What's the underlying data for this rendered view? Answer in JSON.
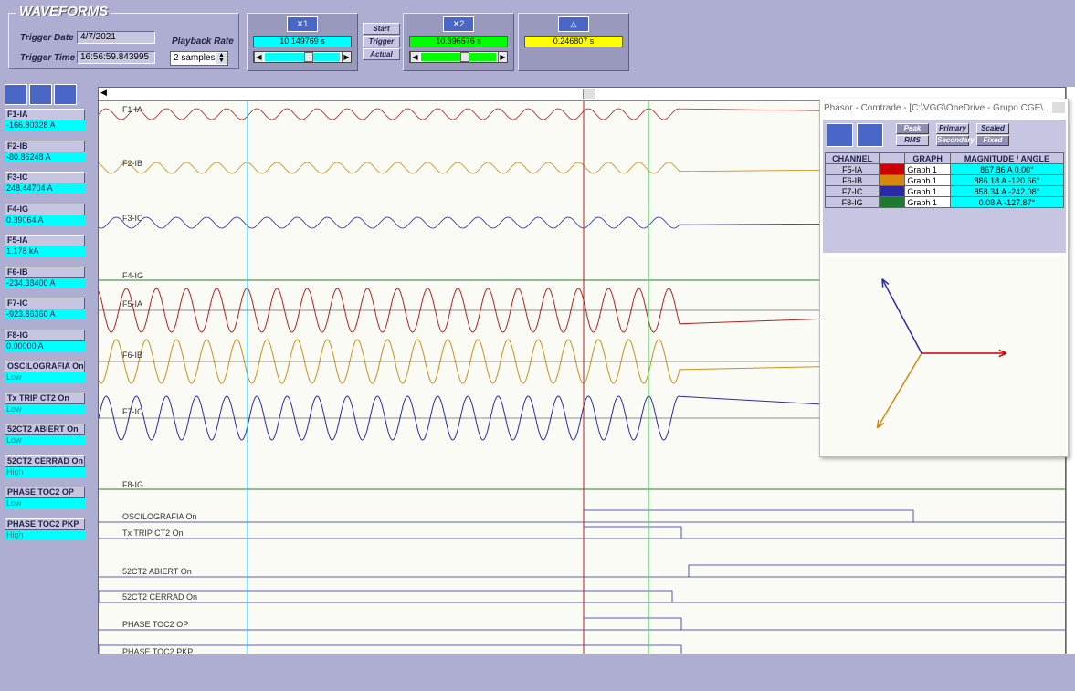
{
  "header": {
    "title": "WAVEFORMS",
    "trigger_date_label": "Trigger Date",
    "trigger_date": "4/7/2021",
    "trigger_time_label": "Trigger Time",
    "trigger_time": "16:56:59.843995",
    "playback_rate_label": "Playback Rate",
    "playback_rate": "2 samples",
    "cursor1": {
      "value": "10.149769 s",
      "color": "#00ffff",
      "icon": "cursor-1-icon"
    },
    "cursor2": {
      "value": "10.396576 s",
      "color": "#00ff00",
      "icon": "cursor-2-icon"
    },
    "delta": {
      "value": "0.246807 s",
      "color": "#ffff00",
      "icon": "delta-icon"
    },
    "buttons": {
      "start": "Start",
      "trigger": "Trigger",
      "actual": "Actual"
    }
  },
  "channels": [
    {
      "name": "F1-IA",
      "value": "-166.80328 A",
      "type": "analog"
    },
    {
      "name": "F2-IB",
      "value": "-80.86248 A",
      "type": "analog"
    },
    {
      "name": "F3-IC",
      "value": "248.44704 A",
      "type": "analog"
    },
    {
      "name": "F4-IG",
      "value": "0.39064 A",
      "type": "analog"
    },
    {
      "name": "F5-IA",
      "value": "1.178 kA",
      "type": "analog"
    },
    {
      "name": "F6-IB",
      "value": "-234.38400 A",
      "type": "analog"
    },
    {
      "name": "F7-IC",
      "value": "-923.86360 A",
      "type": "analog"
    },
    {
      "name": "F8-IG",
      "value": "0.00000 A",
      "type": "analog"
    },
    {
      "name": "OSCILOGRAFIA On",
      "value": "Low",
      "type": "digital"
    },
    {
      "name": "Tx TRIP CT2  On",
      "value": "Low",
      "type": "digital"
    },
    {
      "name": "52CT2 ABIERT On",
      "value": "Low",
      "type": "digital"
    },
    {
      "name": "52CT2 CERRAD On",
      "value": "High",
      "type": "digital"
    },
    {
      "name": "PHASE TOC2 OP",
      "value": "Low",
      "type": "digital"
    },
    {
      "name": "PHASE TOC2 PKP",
      "value": "High",
      "type": "digital"
    }
  ],
  "traces": {
    "analog": [
      {
        "label": "F1-IA",
        "color": "#b22222",
        "amplitude": "small",
        "ends_at": "cursor-after"
      },
      {
        "label": "F2-IB",
        "color": "#c8901e",
        "amplitude": "small",
        "ends_at": "cursor-after"
      },
      {
        "label": "F3-IC",
        "color": "#2a2aa8",
        "amplitude": "small",
        "ends_at": "cursor-after"
      },
      {
        "label": "F4-IG",
        "color": "#2e7d32",
        "amplitude": "none"
      },
      {
        "label": "F5-IA",
        "color": "#b22222",
        "amplitude": "large",
        "ends_at": "cursor-after"
      },
      {
        "label": "F6-IB",
        "color": "#c8901e",
        "amplitude": "large",
        "ends_at": "cursor-after"
      },
      {
        "label": "F7-IC",
        "color": "#2a2aa8",
        "amplitude": "large",
        "ends_at": "cursor-after"
      },
      {
        "label": "F8-IG",
        "color": "#2e7d32",
        "amplitude": "none"
      }
    ],
    "digital": [
      {
        "label": "OSCILOGRAFIA On"
      },
      {
        "label": "Tx TRIP CT2  On"
      },
      {
        "label": "52CT2 ABIERT On"
      },
      {
        "label": "52CT2 CERRAD On"
      },
      {
        "label": "PHASE TOC2 OP"
      },
      {
        "label": "PHASE TOC2 PKP"
      }
    ]
  },
  "phasor": {
    "title": "Phasor - Comtrade - [C:\\VGG\\OneDrive - Grupo CGE\\...",
    "buttons": {
      "peak": "Peak",
      "rms": "RMS",
      "primary": "Primary",
      "secondary": "Secondary",
      "scaled": "Scaled",
      "fixed": "Fixed"
    },
    "columns": [
      "CHANNEL",
      "",
      "GRAPH",
      "MAGNITUDE / ANGLE"
    ],
    "rows": [
      {
        "channel": "F5-IA",
        "color": "#cc0000",
        "graph": "Graph 1",
        "mag": "867.86 A  0.00°",
        "angle_deg": 0,
        "magnitude": 867.86
      },
      {
        "channel": "F6-IB",
        "color": "#d4880e",
        "graph": "Graph 1",
        "mag": "886.18 A  -120.66°",
        "angle_deg": -120.66,
        "magnitude": 886.18
      },
      {
        "channel": "F7-IC",
        "color": "#2a2aa8",
        "graph": "Graph 1",
        "mag": "858.34 A  -242.08°",
        "angle_deg": -242.08,
        "magnitude": 858.34
      },
      {
        "channel": "F8-IG",
        "color": "#1e7a2e",
        "graph": "Graph 1",
        "mag": "0.08 A  -127.87°",
        "angle_deg": -127.87,
        "magnitude": 0.08
      }
    ]
  }
}
